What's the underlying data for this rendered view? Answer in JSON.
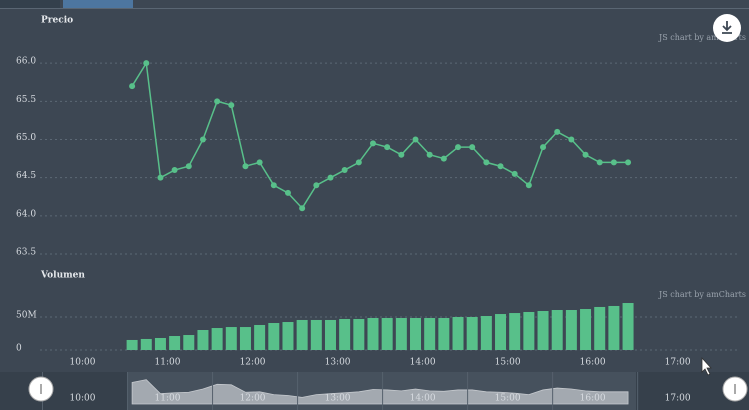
{
  "chart_data": [
    {
      "type": "line",
      "title": "Precio",
      "credit": "JS chart by amCharts",
      "color": "#58c08a",
      "x": [
        "10:35",
        "10:45",
        "10:55",
        "11:05",
        "11:15",
        "11:25",
        "11:35",
        "11:45",
        "11:55",
        "12:05",
        "12:15",
        "12:25",
        "12:35",
        "12:45",
        "12:55",
        "13:05",
        "13:15",
        "13:25",
        "13:35",
        "13:45",
        "13:55",
        "14:05",
        "14:15",
        "14:25",
        "14:35",
        "14:45",
        "14:55",
        "15:05",
        "15:15",
        "15:25",
        "15:35",
        "15:45",
        "15:55",
        "16:05",
        "16:15",
        "16:25"
      ],
      "values": [
        65.7,
        66.0,
        64.5,
        64.6,
        64.65,
        65.0,
        65.5,
        65.45,
        64.65,
        64.7,
        64.4,
        64.3,
        64.1,
        64.4,
        64.5,
        64.6,
        64.7,
        64.95,
        64.9,
        64.8,
        65.0,
        64.8,
        64.75,
        64.9,
        64.9,
        64.7,
        64.65,
        64.55,
        64.4,
        64.9,
        65.1,
        65.0,
        64.8,
        64.7,
        64.7,
        64.7
      ],
      "xlim": [
        "09:30",
        "17:44"
      ],
      "ylim": [
        63.5,
        66.5
      ],
      "yticks": [
        63.5,
        {
          "value": 64,
          "label": "64.0"
        },
        64.5,
        {
          "value": 65,
          "label": "65.0"
        },
        65.5,
        {
          "value": 66,
          "label": "66.0"
        }
      ],
      "grid": true
    },
    {
      "type": "bar",
      "title": "Volumen",
      "credit": "JS chart by amCharts",
      "color": "#58c08a",
      "x": [
        "10:35",
        "10:45",
        "10:55",
        "11:05",
        "11:15",
        "11:25",
        "11:35",
        "11:45",
        "11:55",
        "12:05",
        "12:15",
        "12:25",
        "12:35",
        "12:45",
        "12:55",
        "13:05",
        "13:15",
        "13:25",
        "13:35",
        "13:45",
        "13:55",
        "14:05",
        "14:15",
        "14:25",
        "14:35",
        "14:45",
        "14:55",
        "15:05",
        "15:15",
        "15:25",
        "15:35",
        "15:45",
        "15:55",
        "16:05",
        "16:15",
        "16:25"
      ],
      "values": [
        15200000,
        16700000,
        18200000,
        21200000,
        22700000,
        30300000,
        33300000,
        34800000,
        34800000,
        37900000,
        40900000,
        42400000,
        45500000,
        45500000,
        45500000,
        47000000,
        47000000,
        48500000,
        48500000,
        48500000,
        48500000,
        48500000,
        48500000,
        50000000,
        50000000,
        51500000,
        54500000,
        56000000,
        57600000,
        59100000,
        60600000,
        60600000,
        62100000,
        65200000,
        66700000,
        71200000
      ],
      "xlim": [
        "09:30",
        "17:44"
      ],
      "xticks": [
        "10:00",
        "11:00",
        "12:00",
        "13:00",
        "14:00",
        "15:00",
        "16:00",
        "17:00"
      ],
      "ylim": [
        0,
        100000000
      ],
      "yticks": [
        0,
        {
          "value": 50000000,
          "label": "50M"
        }
      ],
      "grid": true
    }
  ]
}
